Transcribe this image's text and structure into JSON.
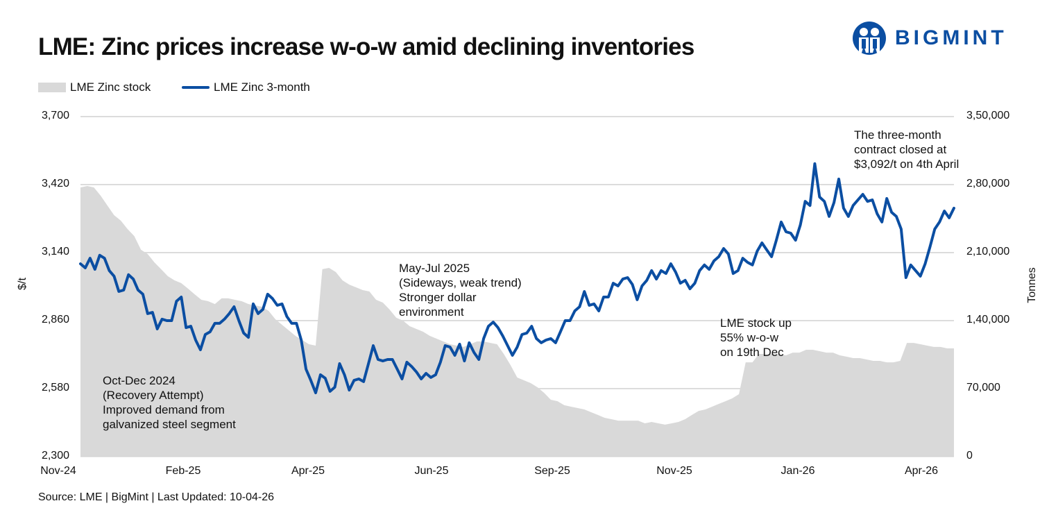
{
  "title": "LME: Zinc prices increase w-o-w amid declining  inventories",
  "logo": {
    "text": "BIGMINT",
    "color": "#0b4ea2"
  },
  "source": "Source: LME | BigMint | Last Updated: 10-04-26",
  "chart_data": {
    "type": "line+area",
    "title": "LME: Zinc prices increase w-o-w amid declining  inventories",
    "legend_position": "top-left",
    "grid": true,
    "ylabel_left": "$/t",
    "ylabel_right": "Tonnes",
    "ylim_left": [
      2300,
      3700
    ],
    "ylim_right": [
      0,
      350000
    ],
    "y_ticks_left": [
      "3,700",
      "3,420",
      "3,140",
      "2,860",
      "2,580",
      "2,300"
    ],
    "y_ticks_right": [
      "3,50,000",
      "2,80,000",
      "2,10,000",
      "1,40,000",
      "70,000",
      "0"
    ],
    "x_ticks": [
      "Nov-24",
      "Feb-25",
      "Apr-25",
      "Jun-25",
      "Sep-25",
      "Nov-25",
      "Jan-26",
      "Apr-26"
    ],
    "series": [
      {
        "name": "LME Zinc stock",
        "type": "area",
        "axis": "right",
        "color": "#d9d9d9",
        "values": [
          277100,
          278600,
          277100,
          268600,
          258600,
          248600,
          242900,
          234300,
          227100,
          212900,
          208600,
          200000,
          192900,
          185700,
          181400,
          178600,
          172900,
          167100,
          161400,
          160000,
          157100,
          162900,
          162900,
          161400,
          160000,
          157100,
          155700,
          154300,
          150000,
          141400,
          135700,
          130000,
          124300,
          120000,
          115700,
          114300,
          192900,
          194300,
          190000,
          181400,
          177100,
          174300,
          171400,
          170000,
          161400,
          158600,
          151400,
          142900,
          140000,
          134300,
          131400,
          128600,
          124300,
          121400,
          118600,
          115700,
          114300,
          112900,
          115700,
          118600,
          118600,
          117100,
          115700,
          105700,
          94300,
          81400,
          78600,
          75700,
          71400,
          65700,
          58600,
          57100,
          52900,
          51400,
          50000,
          48600,
          45700,
          42900,
          40000,
          38600,
          37100,
          37100,
          37100,
          37100,
          34300,
          35700,
          34300,
          32900,
          34300,
          35700,
          38600,
          42900,
          47100,
          48600,
          51400,
          54300,
          57100,
          60000,
          64300,
          97100,
          97100,
          105700,
          105700,
          105700,
          105700,
          104300,
          107100,
          107100,
          110000,
          110000,
          108600,
          107100,
          107100,
          104300,
          102900,
          101400,
          101400,
          100000,
          98600,
          98600,
          97100,
          97100,
          98600,
          117100,
          117100,
          115700,
          114300,
          112900,
          112900,
          111400,
          111400
        ]
      },
      {
        "name": "LME Zinc 3-month",
        "type": "line",
        "axis": "left",
        "color": "#0b4ea2",
        "values": [
          3094,
          3077,
          3117,
          3071,
          3129,
          3117,
          3066,
          3043,
          2980,
          2986,
          3049,
          3031,
          2986,
          2969,
          2889,
          2894,
          2826,
          2866,
          2860,
          2860,
          2940,
          2957,
          2831,
          2837,
          2780,
          2740,
          2803,
          2814,
          2849,
          2849,
          2866,
          2889,
          2917,
          2860,
          2809,
          2791,
          2929,
          2889,
          2906,
          2969,
          2951,
          2923,
          2929,
          2877,
          2849,
          2849,
          2780,
          2660,
          2614,
          2563,
          2637,
          2623,
          2569,
          2586,
          2683,
          2637,
          2574,
          2614,
          2620,
          2609,
          2683,
          2757,
          2700,
          2694,
          2700,
          2700,
          2660,
          2620,
          2689,
          2671,
          2649,
          2620,
          2643,
          2626,
          2637,
          2689,
          2757,
          2751,
          2717,
          2763,
          2694,
          2769,
          2729,
          2700,
          2786,
          2837,
          2854,
          2831,
          2797,
          2757,
          2717,
          2751,
          2803,
          2809,
          2837,
          2786,
          2769,
          2780,
          2786,
          2769,
          2814,
          2860,
          2860,
          2900,
          2917,
          2980,
          2923,
          2929,
          2900,
          2957,
          2957,
          3014,
          3003,
          3031,
          3037,
          3009,
          2946,
          3003,
          3026,
          3066,
          3031,
          3066,
          3054,
          3094,
          3060,
          3014,
          3026,
          2991,
          3014,
          3066,
          3089,
          3071,
          3106,
          3123,
          3157,
          3134,
          3054,
          3066,
          3117,
          3100,
          3089,
          3146,
          3180,
          3151,
          3123,
          3191,
          3266,
          3226,
          3220,
          3191,
          3254,
          3351,
          3334,
          3506,
          3369,
          3351,
          3289,
          3346,
          3443,
          3323,
          3289,
          3334,
          3357,
          3380,
          3351,
          3357,
          3300,
          3266,
          3363,
          3306,
          3289,
          3237,
          3037,
          3089,
          3066,
          3043,
          3094,
          3163,
          3237,
          3266,
          3311,
          3283,
          3323
        ]
      }
    ],
    "annotations": [
      "Oct-Dec 2024\n(Recovery Attempt)\nImproved demand from\ngalvanized steel segment",
      "May-Jul 2025\n(Sideways, weak trend)\nStronger dollar\nenvironment",
      "LME stock up\n55% w-o-w\non 19th Dec",
      "The three-month\ncontract closed at\n$3,092/t on 4th April"
    ]
  }
}
